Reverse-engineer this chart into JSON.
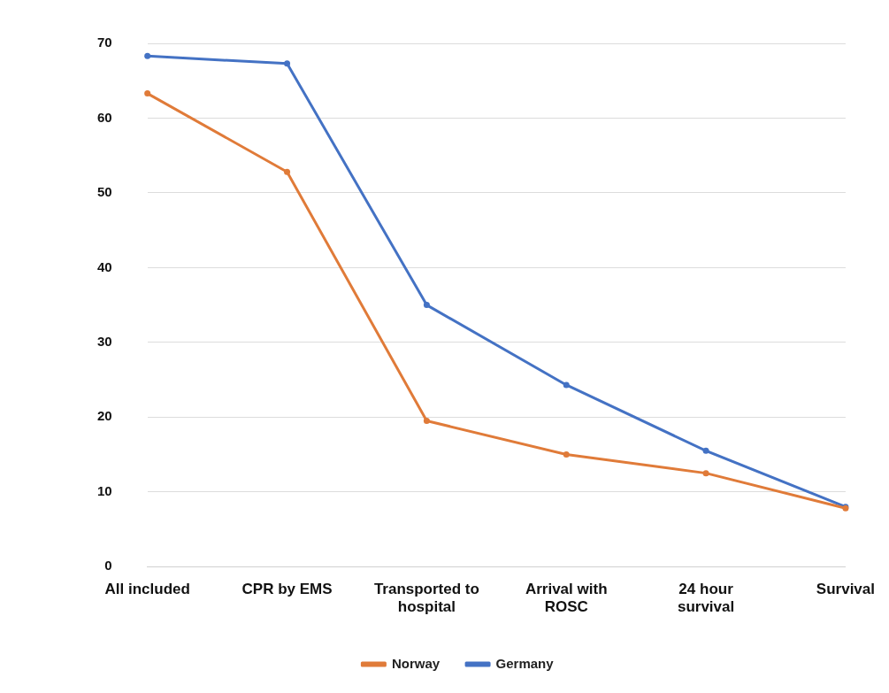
{
  "chart_data": {
    "type": "line",
    "categories": [
      "All included",
      "CPR by EMS",
      "Transported to hospital",
      "Arrival with ROSC",
      "24 hour survival",
      "Survival"
    ],
    "series": [
      {
        "name": "Germany",
        "color": "#4472c4",
        "values": [
          68.3,
          67.3,
          35,
          24.3,
          15.5,
          8
        ]
      },
      {
        "name": "Norway",
        "color": "#e07b39",
        "values": [
          63.3,
          52.8,
          19.5,
          15,
          12.5,
          7.8
        ]
      }
    ],
    "ylim": [
      0,
      70
    ],
    "yticks": [
      0,
      10,
      20,
      30,
      40,
      50,
      60,
      70
    ],
    "grid": "y",
    "legend": "bottom",
    "marker": "circle",
    "line_style": "solid"
  }
}
